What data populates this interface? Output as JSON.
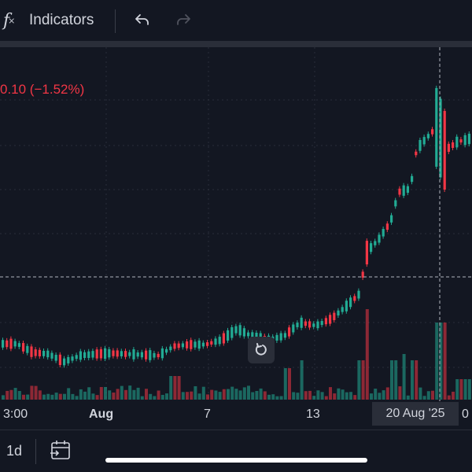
{
  "toolbar": {
    "indicators_label": "Indicators",
    "fx_icon": "function-icon",
    "undo_icon": "undo-icon",
    "redo_icon": "redo-icon"
  },
  "chart": {
    "change_text": "0.10 (−1.52%)",
    "colors": {
      "up": "#22ab94",
      "down": "#f23645",
      "grid": "#2a2e39",
      "background": "#131722"
    }
  },
  "xaxis": {
    "ticks": [
      {
        "label": "3:00"
      },
      {
        "label": "Aug"
      },
      {
        "label": "7"
      },
      {
        "label": "13"
      },
      {
        "label": "20 Aug '25"
      },
      {
        "label": "0"
      }
    ]
  },
  "bottom": {
    "timeframe": "1d",
    "calendar_icon": "calendar-range-icon"
  }
}
